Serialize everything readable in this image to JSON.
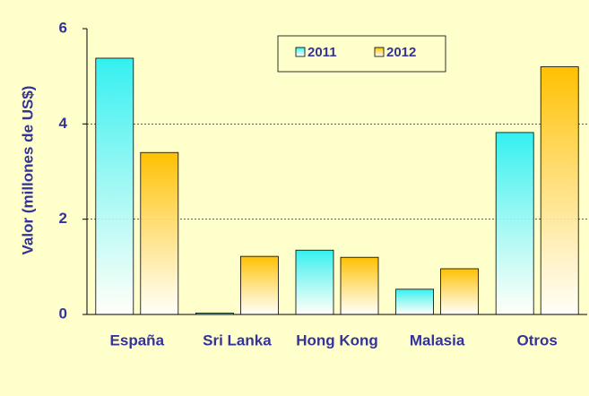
{
  "chart_data": {
    "type": "bar",
    "y_label": "Valor (millones de US$)",
    "categories": [
      "España",
      "Sri Lanka",
      "Hong Kong",
      "Malasia",
      "Otros"
    ],
    "series": [
      {
        "name": "2011",
        "color": "#33f0f0",
        "values": [
          5.38,
          0.03,
          1.35,
          0.53,
          3.82
        ]
      },
      {
        "name": "2012",
        "color": "#ffc000",
        "values": [
          3.4,
          1.22,
          1.2,
          0.96,
          5.2
        ]
      }
    ],
    "ylim": [
      0,
      6
    ],
    "yticks": [
      0,
      2,
      4,
      6
    ],
    "grid": true,
    "legend": "top"
  }
}
